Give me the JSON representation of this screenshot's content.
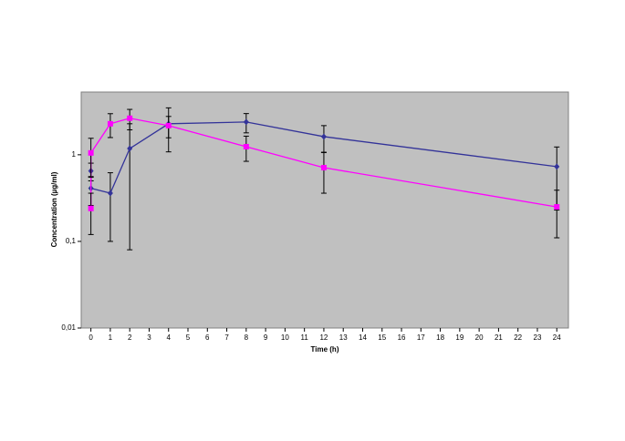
{
  "chart_data": {
    "type": "line",
    "x_label": "Time (h)",
    "y_label": "Concentration (µg/ml)",
    "xlim": [
      -0.5,
      24.6
    ],
    "xticks": [
      0,
      1,
      2,
      3,
      4,
      5,
      6,
      7,
      8,
      9,
      10,
      11,
      12,
      13,
      14,
      15,
      16,
      17,
      18,
      19,
      20,
      21,
      22,
      23,
      24
    ],
    "ylim": [
      0.01,
      5.3
    ],
    "yticks": [
      {
        "value": 0.01,
        "label": "0,01"
      },
      {
        "value": 0.1,
        "label": "0,1"
      },
      1
    ],
    "y_log": true,
    "background": "#c0c0c0",
    "series": [
      {
        "color": "#333399",
        "marker": "diamond",
        "x": [
          0,
          0,
          1,
          2,
          4,
          8,
          12,
          24
        ],
        "values": [
          0.65,
          0.41,
          0.36,
          1.18,
          2.28,
          2.39,
          1.62,
          0.73
        ],
        "errors": [
          0.15,
          0.15,
          0.26,
          1.1,
          1.2,
          0.6,
          0.55,
          0.5
        ]
      },
      {
        "color": "#ff00ff",
        "marker": "square",
        "x": [
          0,
          0,
          1,
          2,
          4,
          8,
          12,
          24
        ],
        "values": [
          0.24,
          1.05,
          2.28,
          2.64,
          2.17,
          1.24,
          0.71,
          0.25
        ],
        "errors": [
          0.12,
          0.5,
          0.7,
          0.7,
          0.6,
          0.4,
          0.35,
          0.14
        ]
      }
    ]
  }
}
